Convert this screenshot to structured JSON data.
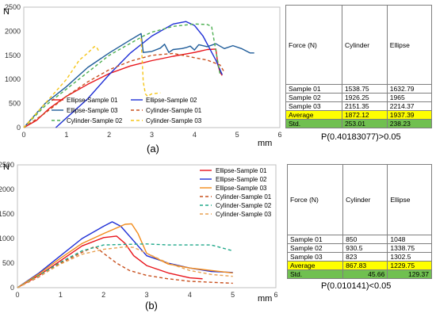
{
  "colors": {
    "ellipse_1": "#e8141b",
    "ellipse_2": "#1f2fd6",
    "ellipse_3_a": "#1f5c99",
    "ellipse_3_b": "#f28b1a",
    "cyl_1": "#c8501e",
    "cyl_2_a": "#4caf50",
    "cyl_2_b": "#20a88a",
    "cyl_3_a": "#f5c518",
    "cyl_3_b": "#e8a050",
    "avg_row": "#ffff00",
    "std_row": "#70c050"
  },
  "panels": [
    {
      "sublabel": "(a)",
      "chart_data": {
        "type": "line",
        "ylabel": "N",
        "xlabel": "mm",
        "xlim": [
          0,
          6
        ],
        "ylim": [
          0,
          2500
        ],
        "xticks": [
          0,
          1,
          2,
          3,
          4,
          5,
          6
        ],
        "yticks": [
          0,
          500,
          1000,
          1500,
          2000,
          2500
        ],
        "legend_position": "bottom-inside",
        "grid": false,
        "series": [
          {
            "name": "Ellipse-Sample 01",
            "color_key": "ellipse_1",
            "dash": "solid",
            "x": [
              0,
              0.3,
              0.6,
              1.0,
              1.5,
              2.0,
              2.5,
              3.0,
              3.5,
              4.0,
              4.3,
              4.5,
              4.55,
              4.6,
              4.65
            ],
            "y": [
              0,
              150,
              400,
              650,
              900,
              1120,
              1280,
              1390,
              1480,
              1560,
              1620,
              1630,
              1300,
              1150,
              1080
            ]
          },
          {
            "name": "Ellipse-Sample 02",
            "color_key": "ellipse_2",
            "dash": "solid",
            "x": [
              0.75,
              1.0,
              1.5,
              2.0,
              2.5,
              3.0,
              3.5,
              3.8,
              4.0,
              4.2,
              4.5,
              4.65
            ],
            "y": [
              0,
              200,
              600,
              1100,
              1550,
              1900,
              2150,
              2200,
              2120,
              1900,
              1400,
              1100
            ]
          },
          {
            "name": "Ellipse-Sample 03",
            "color_key": "ellipse_3_a",
            "dash": "solid",
            "x": [
              0,
              0.5,
              1.0,
              1.5,
              2.0,
              2.5,
              2.75,
              2.8,
              3.0,
              3.2,
              3.3,
              3.4,
              3.5,
              3.7,
              3.8,
              3.9,
              4.0,
              4.1,
              4.3,
              4.5,
              4.7,
              4.9,
              5.1,
              5.3,
              5.4
            ],
            "y": [
              0,
              500,
              850,
              1250,
              1550,
              1820,
              1950,
              1560,
              1580,
              1650,
              1730,
              1560,
              1620,
              1640,
              1660,
              1690,
              1610,
              1720,
              1680,
              1740,
              1640,
              1700,
              1640,
              1550,
              1550
            ]
          },
          {
            "name": "Cylinder-Sample 01",
            "color_key": "cyl_1",
            "dash": "dashed",
            "x": [
              0,
              0.5,
              1.0,
              1.5,
              2.0,
              2.5,
              3.0,
              3.5,
              4.0,
              4.3,
              4.6,
              4.7
            ],
            "y": [
              0,
              300,
              650,
              950,
              1200,
              1380,
              1500,
              1540,
              1450,
              1400,
              1300,
              1150
            ]
          },
          {
            "name": "Cylinder-Sample 02",
            "color_key": "cyl_2_a",
            "dash": "dashed",
            "x": [
              0,
              0.5,
              1.0,
              1.5,
              2.0,
              2.5,
              2.8,
              3.0,
              3.5,
              4.0,
              4.3,
              4.4,
              4.5,
              4.6
            ],
            "y": [
              0,
              450,
              800,
              1150,
              1500,
              1750,
              1900,
              1980,
              2100,
              2150,
              2140,
              2100,
              1600,
              1100
            ]
          },
          {
            "name": "Cylinder-Sample 03",
            "color_key": "cyl_3_a",
            "dash": "dashed",
            "x": [
              0,
              0.5,
              1.0,
              1.3,
              1.5,
              1.65,
              1.7,
              1.75
            ],
            "y": [
              0,
              500,
              1000,
              1400,
              1550,
              1680,
              1680,
              1600
            ],
            "x2": [
              2.75,
              2.8,
              2.85,
              2.9,
              3.0,
              3.2
            ],
            "y2": [
              1850,
              950,
              700,
              650,
              700,
              720
            ]
          }
        ]
      },
      "table": {
        "header": [
          "Force (N)",
          "Cylinder",
          "Ellipse"
        ],
        "rows": [
          {
            "cells": [
              "Sample 01",
              "1538.75",
              "1632.79"
            ],
            "style": "plain"
          },
          {
            "cells": [
              "Sample 02",
              "1926.25",
              "1965"
            ],
            "style": "plain"
          },
          {
            "cells": [
              "Sample 03",
              "2151.35",
              "2214.37"
            ],
            "style": "plain"
          },
          {
            "cells": [
              "Average",
              "1872.12",
              "1937.39"
            ],
            "style": "avg"
          },
          {
            "cells": [
              "Std.",
              "253.01",
              "238.23"
            ],
            "style": "std"
          }
        ],
        "pvalue": "P(0.40183077)>0.05"
      }
    },
    {
      "sublabel": "(b)",
      "chart_data": {
        "type": "line",
        "ylabel": "N",
        "xlabel": "mm",
        "xlim": [
          0,
          6
        ],
        "ylim": [
          0,
          2500
        ],
        "xticks": [
          0,
          1,
          2,
          3,
          4,
          5,
          6
        ],
        "yticks": [
          0,
          500,
          1000,
          1500,
          2000,
          2500
        ],
        "legend_position": "top-right",
        "grid": false,
        "series": [
          {
            "name": "Ellipse-Sample 01",
            "color_key": "ellipse_1",
            "dash": "solid",
            "x": [
              0,
              0.5,
              1.0,
              1.5,
              2.0,
              2.3,
              2.5,
              2.7,
              3.0,
              3.5,
              4.0,
              4.3
            ],
            "y": [
              0,
              250,
              550,
              850,
              1020,
              1050,
              900,
              650,
              450,
              300,
              200,
              180
            ]
          },
          {
            "name": "Ellipse-Sample 02",
            "color_key": "ellipse_2",
            "dash": "solid",
            "x": [
              0,
              0.5,
              1.0,
              1.5,
              2.0,
              2.2,
              2.4,
              2.7,
              3.0,
              3.5,
              4.0,
              4.5,
              5.0
            ],
            "y": [
              0,
              300,
              650,
              1000,
              1250,
              1340,
              1250,
              950,
              650,
              500,
              400,
              330,
              310
            ]
          },
          {
            "name": "Ellipse-Sample 03",
            "color_key": "ellipse_3_b",
            "dash": "solid",
            "x": [
              0,
              0.5,
              1.0,
              1.5,
              2.0,
              2.5,
              2.65,
              2.8,
              3.0,
              3.5,
              4.0,
              4.5,
              5.0
            ],
            "y": [
              0,
              280,
              600,
              900,
              1100,
              1290,
              1300,
              1100,
              700,
              480,
              400,
              350,
              300
            ]
          },
          {
            "name": "Cylinder-Sample 01",
            "color_key": "cyl_1",
            "dash": "dashed",
            "x": [
              0,
              0.5,
              1.0,
              1.5,
              1.8,
              2.0,
              2.3,
              2.6,
              3.0,
              3.5,
              4.0,
              4.5,
              5.0
            ],
            "y": [
              0,
              220,
              500,
              720,
              840,
              700,
              500,
              350,
              250,
              180,
              130,
              110,
              90
            ]
          },
          {
            "name": "Cylinder-Sample 02",
            "color_key": "cyl_2_b",
            "dash": "dashed",
            "x": [
              0,
              0.5,
              1.0,
              1.5,
              2.0,
              2.5,
              3.0,
              3.5,
              4.0,
              4.5,
              5.0
            ],
            "y": [
              0,
              250,
              520,
              750,
              870,
              880,
              890,
              870,
              870,
              870,
              750
            ]
          },
          {
            "name": "Cylinder-Sample 03",
            "color_key": "cyl_3_b",
            "dash": "dashed",
            "x": [
              0,
              0.5,
              1.0,
              1.5,
              2.0,
              2.5,
              2.7,
              3.0,
              3.5,
              4.0,
              4.5,
              5.0
            ],
            "y": [
              0,
              230,
              480,
              680,
              780,
              830,
              820,
              700,
              500,
              350,
              270,
              230
            ]
          }
        ]
      },
      "table": {
        "header": [
          "Force (N)",
          "Cylinder",
          "Ellipse"
        ],
        "rows": [
          {
            "cells": [
              "Sample 01",
              "850",
              "1048"
            ],
            "style": "plain"
          },
          {
            "cells": [
              "Sample 02",
              "930.5",
              "1338.75"
            ],
            "style": "plain"
          },
          {
            "cells": [
              "Sample 03",
              "823",
              "1302.5"
            ],
            "style": "plain"
          },
          {
            "cells": [
              "Average",
              "867.83",
              "1229.75"
            ],
            "style": "avg"
          },
          {
            "cells": [
              "Std.",
              "45.66",
              "129.37"
            ],
            "style": "std"
          }
        ],
        "pvalue": "P(0.010141)<0.05"
      }
    }
  ]
}
